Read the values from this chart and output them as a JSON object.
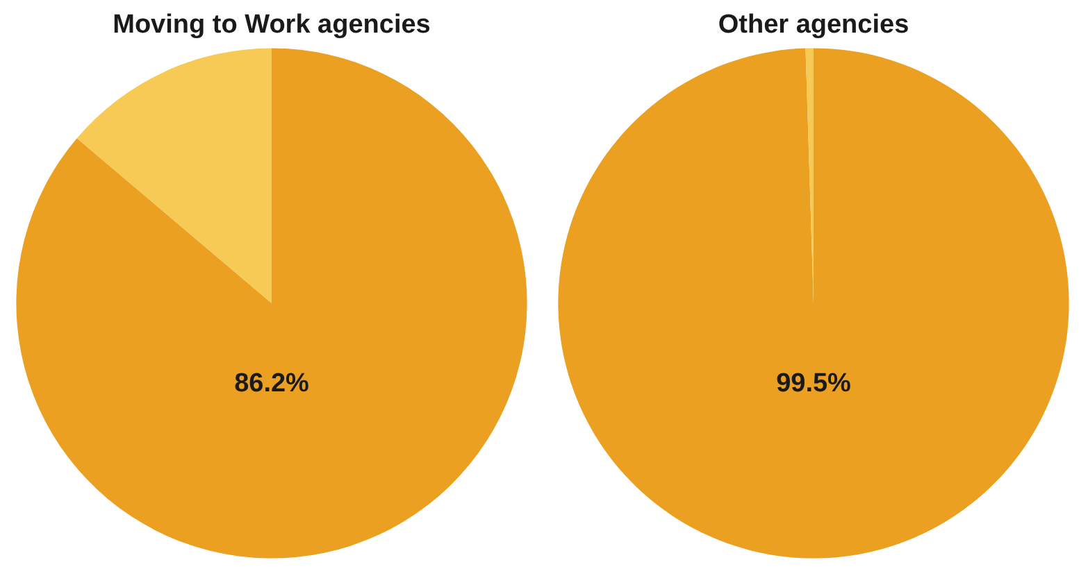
{
  "chart_data": [
    {
      "type": "pie",
      "title": "Moving to Work agencies",
      "categories": [
        null,
        null
      ],
      "values": [
        86.2,
        13.8
      ],
      "colors": [
        "#eba021",
        "#f7ca56"
      ],
      "value_labels": [
        "86.2%",
        null
      ]
    },
    {
      "type": "pie",
      "title": "Other agencies",
      "categories": [
        null,
        null
      ],
      "values": [
        99.5,
        0.5
      ],
      "colors": [
        "#eba021",
        "#f7ca56"
      ],
      "value_labels": [
        "99.5%",
        null
      ]
    }
  ]
}
